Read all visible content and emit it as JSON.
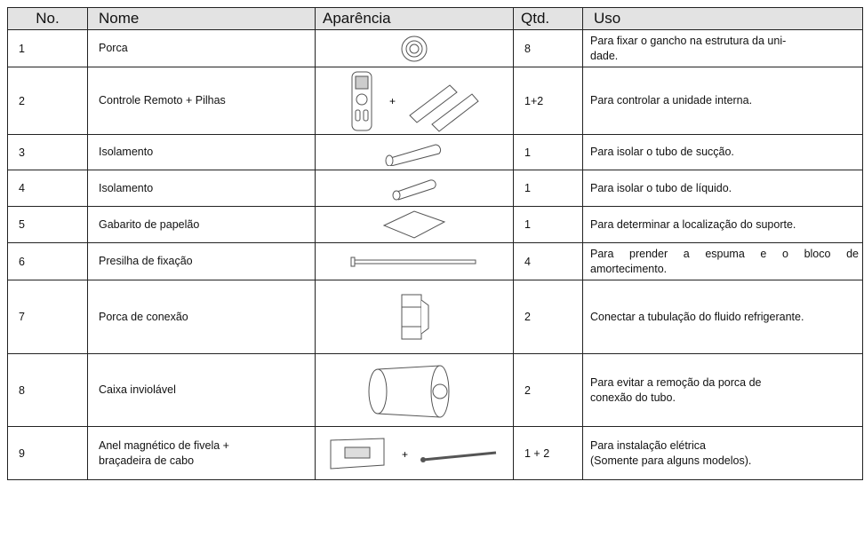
{
  "header": [
    "No.",
    "Nome",
    "Aparência",
    "Qtd.",
    "Uso"
  ],
  "rows": [
    {
      "no": "1",
      "nome": [
        "Porca"
      ],
      "qtd": "8",
      "uso": [
        "Para fixar o gancho na estrutura da uni-",
        "dade."
      ]
    },
    {
      "no": "2",
      "nome": [
        "Controle Remoto + Pilhas"
      ],
      "qtd": "1+2",
      "uso": [
        "Para controlar a unidade interna."
      ]
    },
    {
      "no": "3",
      "nome": [
        "Isolamento"
      ],
      "qtd": "1",
      "uso": [
        "Para isolar o tubo de sucção."
      ]
    },
    {
      "no": "4",
      "nome": [
        "Isolamento"
      ],
      "qtd": "1",
      "uso": [
        "Para isolar o tubo de líquido."
      ]
    },
    {
      "no": "5",
      "nome": [
        "Gabarito de papelão"
      ],
      "qtd": "1",
      "uso": [
        "Para determinar a localização do suporte."
      ]
    },
    {
      "no": "6",
      "nome": [
        "Presilha de fixação"
      ],
      "qtd": "4",
      "uso": [
        "Para prender a espuma e o bloco de",
        "amortecimento."
      ]
    },
    {
      "no": "7",
      "nome": [
        "Porca de conexão"
      ],
      "qtd": "2",
      "uso": [
        "Conectar a tubulação do fluido refrigerante."
      ]
    },
    {
      "no": "8",
      "nome": [
        "Caixa inviolável"
      ],
      "qtd": "2",
      "uso": [
        "Para evitar a remoção da porca de",
        "conexão do tubo."
      ]
    },
    {
      "no": "9",
      "nome": [
        "Anel magnético de fivela +",
        "braçadeira de cabo"
      ],
      "qtd": "1 + 2",
      "uso": [
        "Para instalação elétrica",
        "(Somente para alguns modelos)."
      ]
    }
  ]
}
